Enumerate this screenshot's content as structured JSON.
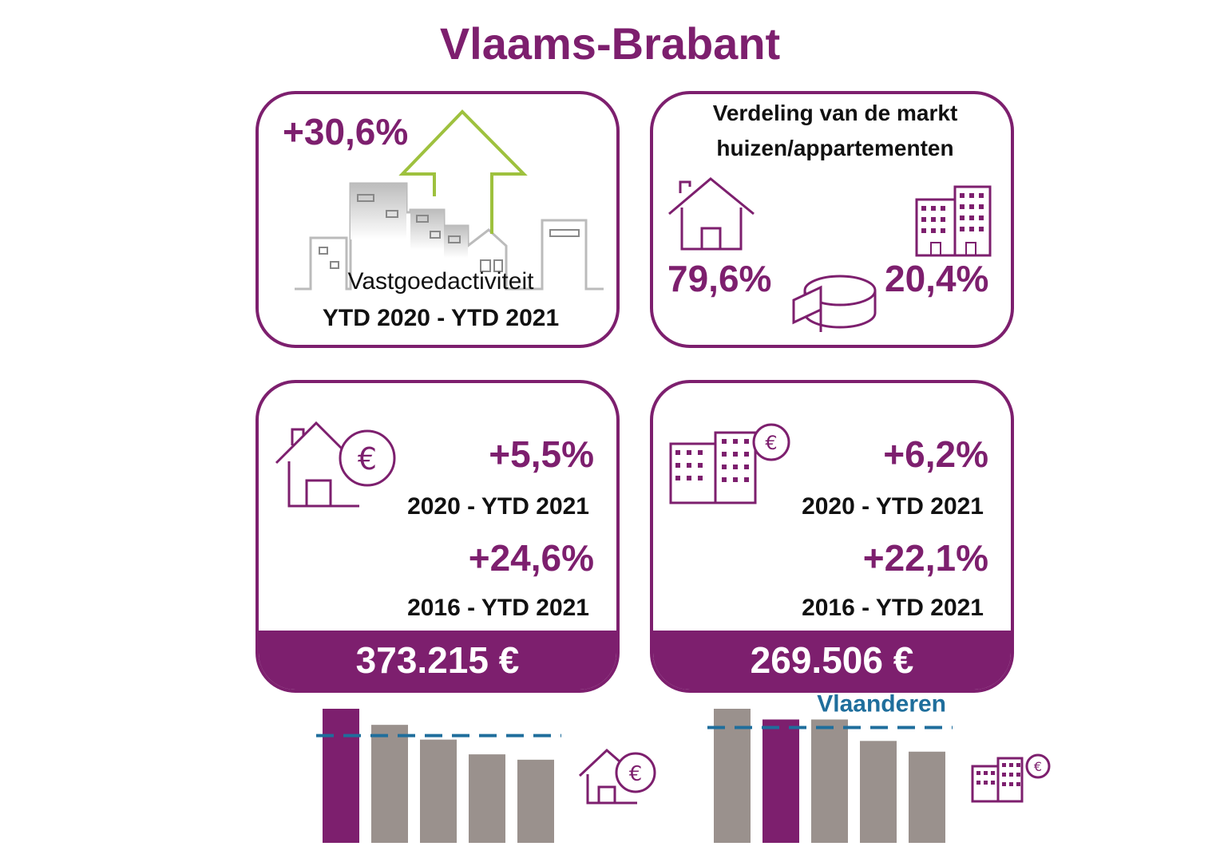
{
  "title": "Vlaams-Brabant",
  "colors": {
    "accent": "#7d1f6e",
    "gray_bar": "#9a918d",
    "flanders": "#1f6e9c",
    "arrow": "#9ec13e"
  },
  "activity_card": {
    "change": "+30,6%",
    "label": "Vastgoedactiviteit",
    "period": "YTD 2020 - YTD 2021",
    "icon": "city-arrow-icon"
  },
  "market_card": {
    "title_line1": "Verdeling van de markt",
    "title_line2": "huizen/appartementen",
    "houses_share": "79,6%",
    "apartments_share": "20,4%"
  },
  "house_price_card": {
    "change_1": "+5,5%",
    "period_1": "2020 - YTD 2021",
    "change_2": "+24,6%",
    "period_2": "2016 - YTD 2021",
    "price": "373.215 €"
  },
  "apartment_price_card": {
    "change_1": "+6,2%",
    "period_1": "2020 - YTD 2021",
    "change_2": "+22,1%",
    "period_2": "2016 - YTD 2021",
    "price": "269.506 €"
  },
  "chart_data": [
    {
      "type": "bar",
      "categories": [
        "",
        "",
        "",
        "",
        ""
      ],
      "values": [
        100,
        88,
        77,
        66,
        62
      ],
      "highlight_index": 0,
      "reference_line": {
        "label": "",
        "value": 80
      },
      "ylim": [
        0,
        100
      ],
      "icon": "house-euro-icon"
    },
    {
      "type": "bar",
      "categories": [
        "",
        "",
        "",
        "",
        ""
      ],
      "values": [
        100,
        92,
        92,
        76,
        68
      ],
      "highlight_index": 1,
      "reference_line": {
        "label": "Vlaanderen",
        "value": 86
      },
      "ylim": [
        0,
        100
      ],
      "icon": "apartment-euro-icon"
    }
  ]
}
